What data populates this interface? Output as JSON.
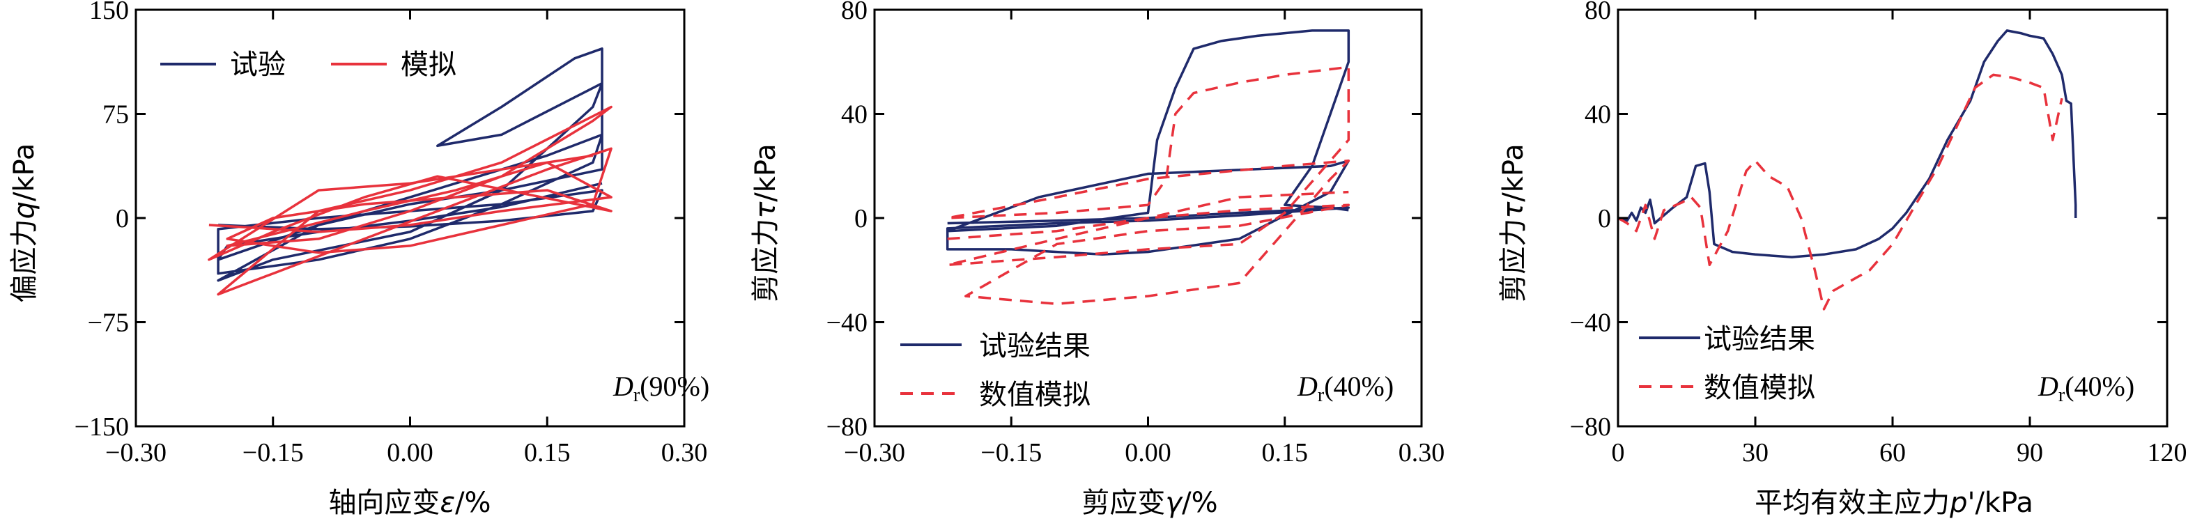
{
  "colors": {
    "test": "#1f2a6b",
    "sim": "#e8323c"
  },
  "chart_data": [
    {
      "type": "line",
      "xlabel_prefix": "轴向应变",
      "xlabel_symbol": "ε",
      "xlabel_suffix": "/%",
      "ylabel_prefix": "偏应力",
      "ylabel_symbol": "q",
      "ylabel_suffix": "/kPa",
      "xlim": [
        -0.3,
        0.3
      ],
      "ylim": [
        -150,
        150
      ],
      "xticks": [
        "−0.30",
        "−0.15",
        "0.00",
        "0.15",
        "0.30"
      ],
      "yticks": [
        "150",
        "75",
        "0",
        "−75",
        "−150"
      ],
      "legend": [
        "试验",
        "模拟"
      ],
      "legend_position": "top-left",
      "annotation": {
        "symbol": "D",
        "sub": "r",
        "text": "(90%)"
      },
      "series": [
        {
          "name": "试验",
          "style": "solid",
          "points": [
            [
              -0.21,
              -5
            ],
            [
              -0.1,
              -8
            ],
            [
              0,
              -6
            ],
            [
              0.1,
              -2
            ],
            [
              0.2,
              5
            ],
            [
              0.21,
              20
            ],
            [
              0.1,
              10
            ],
            [
              0,
              5
            ],
            [
              -0.1,
              0
            ],
            [
              -0.21,
              -8
            ],
            [
              -0.21,
              -40
            ],
            [
              -0.1,
              -30
            ],
            [
              0,
              -15
            ],
            [
              0.1,
              10
            ],
            [
              0.2,
              40
            ],
            [
              0.21,
              60
            ],
            [
              0.15,
              45
            ],
            [
              0,
              15
            ],
            [
              -0.1,
              -5
            ],
            [
              -0.21,
              -45
            ],
            [
              -0.15,
              -30
            ],
            [
              0,
              -10
            ],
            [
              0.1,
              20
            ],
            [
              0.2,
              80
            ],
            [
              0.21,
              97
            ],
            [
              0.1,
              60
            ],
            [
              0.03,
              52
            ],
            [
              0.1,
              80
            ],
            [
              0.18,
              115
            ],
            [
              0.21,
              122
            ],
            [
              0.21,
              35
            ],
            [
              0.1,
              20
            ],
            [
              0,
              10
            ],
            [
              -0.1,
              -5
            ],
            [
              -0.21,
              -30
            ],
            [
              -0.2,
              -20
            ],
            [
              -0.1,
              -10
            ],
            [
              0,
              -2
            ],
            [
              0.1,
              8
            ],
            [
              0.21,
              25
            ]
          ]
        },
        {
          "name": "模拟",
          "style": "solid",
          "points": [
            [
              -0.22,
              -5
            ],
            [
              -0.1,
              -10
            ],
            [
              0,
              -5
            ],
            [
              0.1,
              5
            ],
            [
              0.22,
              15
            ],
            [
              0.15,
              40
            ],
            [
              0.05,
              20
            ],
            [
              -0.05,
              5
            ],
            [
              -0.2,
              -20
            ],
            [
              -0.1,
              -15
            ],
            [
              0,
              5
            ],
            [
              0.1,
              30
            ],
            [
              0.2,
              70
            ],
            [
              0.22,
              80
            ],
            [
              0.1,
              40
            ],
            [
              0,
              20
            ],
            [
              -0.1,
              5
            ],
            [
              -0.21,
              -55
            ],
            [
              -0.15,
              -40
            ],
            [
              -0.05,
              -15
            ],
            [
              0.05,
              10
            ],
            [
              0.15,
              35
            ],
            [
              0.22,
              50
            ],
            [
              0.2,
              10
            ],
            [
              0.1,
              -5
            ],
            [
              0,
              -20
            ],
            [
              -0.1,
              -25
            ],
            [
              -0.2,
              -15
            ],
            [
              -0.15,
              0
            ],
            [
              -0.05,
              10
            ],
            [
              0.05,
              15
            ],
            [
              0.15,
              20
            ],
            [
              0.22,
              5
            ],
            [
              0.03,
              30
            ],
            [
              -0.05,
              15
            ],
            [
              -0.15,
              -10
            ],
            [
              -0.22,
              -30
            ],
            [
              -0.1,
              20
            ],
            [
              0,
              25
            ],
            [
              0.1,
              35
            ],
            [
              0.2,
              45
            ]
          ]
        }
      ]
    },
    {
      "type": "line",
      "xlabel_prefix": "剪应变",
      "xlabel_symbol": "γ",
      "xlabel_suffix": "/%",
      "ylabel_prefix": "剪应力",
      "ylabel_symbol": "τ",
      "ylabel_suffix": "/kPa",
      "xlim": [
        -0.3,
        0.3
      ],
      "ylim": [
        -80,
        80
      ],
      "xticks": [
        "−0.30",
        "−0.15",
        "0.00",
        "0.15",
        "0.30"
      ],
      "yticks": [
        "80",
        "40",
        "0",
        "−40",
        "−80"
      ],
      "legend": [
        "试验结果",
        "数值模拟"
      ],
      "legend_position": "bottom-left",
      "annotation": {
        "symbol": "D",
        "sub": "r",
        "text": "(40%)"
      },
      "series": [
        {
          "name": "试验结果",
          "style": "solid",
          "points": [
            [
              -0.22,
              -2
            ],
            [
              -0.1,
              -1
            ],
            [
              0,
              0
            ],
            [
              0.1,
              2
            ],
            [
              0.22,
              4
            ],
            [
              0.1,
              1
            ],
            [
              0,
              -1
            ],
            [
              -0.1,
              -2
            ],
            [
              -0.22,
              -4
            ],
            [
              -0.22,
              -12
            ],
            [
              -0.15,
              -12
            ],
            [
              -0.05,
              -14
            ],
            [
              0,
              -13
            ],
            [
              0.1,
              -8
            ],
            [
              0.2,
              10
            ],
            [
              0.22,
              22
            ],
            [
              0.2,
              20
            ],
            [
              0,
              17
            ],
            [
              -0.12,
              8
            ],
            [
              -0.22,
              -5
            ],
            [
              -0.1,
              -3
            ],
            [
              0,
              2
            ],
            [
              0.01,
              30
            ],
            [
              0.03,
              50
            ],
            [
              0.05,
              65
            ],
            [
              0.08,
              68
            ],
            [
              0.12,
              70
            ],
            [
              0.18,
              72
            ],
            [
              0.22,
              72
            ],
            [
              0.22,
              60
            ],
            [
              0.2,
              40
            ],
            [
              0.18,
              20
            ],
            [
              0.16,
              10
            ],
            [
              0.15,
              5
            ],
            [
              0.2,
              4
            ],
            [
              0.22,
              3
            ]
          ]
        },
        {
          "name": "数值模拟",
          "style": "dashed",
          "points": [
            [
              -0.22,
              -8
            ],
            [
              -0.1,
              -5
            ],
            [
              0,
              0
            ],
            [
              0.1,
              3
            ],
            [
              0.22,
              5
            ],
            [
              0.1,
              -3
            ],
            [
              0,
              -5
            ],
            [
              -0.1,
              -10
            ],
            [
              -0.2,
              -30
            ],
            [
              -0.1,
              -33
            ],
            [
              0,
              -30
            ],
            [
              0.1,
              -25
            ],
            [
              0.15,
              -5
            ],
            [
              0.2,
              15
            ],
            [
              0.22,
              22
            ],
            [
              0.15,
              20
            ],
            [
              0,
              15
            ],
            [
              -0.1,
              8
            ],
            [
              -0.22,
              0
            ],
            [
              -0.1,
              2
            ],
            [
              0,
              5
            ],
            [
              0.02,
              15
            ],
            [
              0.03,
              40
            ],
            [
              0.05,
              48
            ],
            [
              0.1,
              52
            ],
            [
              0.15,
              55
            ],
            [
              0.22,
              58
            ],
            [
              0.22,
              30
            ],
            [
              0.15,
              2
            ],
            [
              0.1,
              -10
            ],
            [
              0,
              -12
            ],
            [
              -0.1,
              -15
            ],
            [
              -0.22,
              -18
            ],
            [
              -0.1,
              -8
            ],
            [
              0,
              0
            ],
            [
              0.1,
              8
            ],
            [
              0.22,
              10
            ]
          ]
        }
      ]
    },
    {
      "type": "line",
      "xlabel_prefix": "平均有效主应力",
      "xlabel_symbol": "p'",
      "xlabel_suffix": "/kPa",
      "ylabel_prefix": "剪应力",
      "ylabel_symbol": "τ",
      "ylabel_suffix": "/kPa",
      "xlim": [
        0,
        120
      ],
      "ylim": [
        -80,
        80
      ],
      "xticks": [
        "0",
        "30",
        "60",
        "90",
        "120"
      ],
      "yticks": [
        "80",
        "40",
        "0",
        "−40",
        "−80"
      ],
      "legend": [
        "试验结果",
        "数值模拟"
      ],
      "legend_position": "bottom-left",
      "annotation": {
        "symbol": "D",
        "sub": "r",
        "text": "(40%)"
      },
      "series": [
        {
          "name": "试验结果",
          "style": "solid",
          "points": [
            [
              0,
              0
            ],
            [
              2,
              -1
            ],
            [
              3,
              2
            ],
            [
              4,
              -1
            ],
            [
              5,
              4
            ],
            [
              6,
              2
            ],
            [
              7,
              7
            ],
            [
              8,
              -2
            ],
            [
              12,
              4
            ],
            [
              15,
              8
            ],
            [
              17,
              20
            ],
            [
              19,
              21
            ],
            [
              20,
              10
            ],
            [
              21,
              -10
            ],
            [
              25,
              -13
            ],
            [
              30,
              -14
            ],
            [
              38,
              -15
            ],
            [
              45,
              -14
            ],
            [
              52,
              -12
            ],
            [
              57,
              -8
            ],
            [
              60,
              -4
            ],
            [
              63,
              2
            ],
            [
              68,
              15
            ],
            [
              72,
              30
            ],
            [
              77,
              45
            ],
            [
              80,
              60
            ],
            [
              83,
              68
            ],
            [
              85,
              72
            ],
            [
              88,
              71
            ],
            [
              90,
              70
            ],
            [
              93,
              69
            ],
            [
              95,
              63
            ],
            [
              97,
              55
            ],
            [
              98,
              45
            ],
            [
              99,
              44
            ],
            [
              100,
              5
            ],
            [
              100,
              0
            ]
          ]
        },
        {
          "name": "数值模拟",
          "style": "dashed",
          "points": [
            [
              0,
              0
            ],
            [
              2,
              -2
            ],
            [
              4,
              -5
            ],
            [
              6,
              5
            ],
            [
              8,
              -8
            ],
            [
              10,
              3
            ],
            [
              14,
              6
            ],
            [
              16,
              8
            ],
            [
              18,
              4
            ],
            [
              20,
              -18
            ],
            [
              24,
              -5
            ],
            [
              28,
              18
            ],
            [
              30,
              22
            ],
            [
              33,
              16
            ],
            [
              37,
              12
            ],
            [
              40,
              0
            ],
            [
              43,
              -20
            ],
            [
              45,
              -35
            ],
            [
              47,
              -28
            ],
            [
              50,
              -25
            ],
            [
              55,
              -20
            ],
            [
              60,
              -10
            ],
            [
              65,
              5
            ],
            [
              70,
              20
            ],
            [
              74,
              35
            ],
            [
              78,
              50
            ],
            [
              82,
              55
            ],
            [
              86,
              54
            ],
            [
              90,
              52
            ],
            [
              93,
              50
            ],
            [
              95,
              30
            ],
            [
              97,
              46
            ]
          ]
        }
      ]
    }
  ]
}
